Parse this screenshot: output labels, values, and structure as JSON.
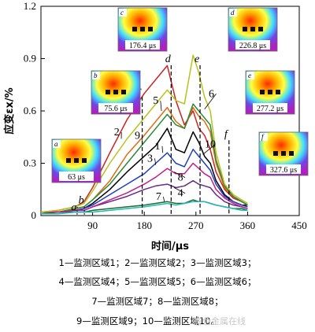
{
  "chart_data": {
    "type": "line",
    "xlabel": "时间/μs",
    "ylabel": "应变εx/%",
    "xlim": [
      0,
      450
    ],
    "ylim": [
      0,
      1.2
    ],
    "xticks": [
      90,
      180,
      270,
      360,
      450
    ],
    "yticks": [
      0,
      0.3,
      0.6,
      0.9,
      1.2
    ],
    "series": [
      {
        "name": "1",
        "color": "#000000",
        "x": [
          0,
          30,
          60,
          75,
          90,
          120,
          150,
          180,
          200,
          220,
          235,
          250,
          265,
          275,
          285,
          295,
          305,
          320,
          335,
          350,
          360
        ],
        "values": [
          0.02,
          0.02,
          0.03,
          0.04,
          0.07,
          0.15,
          0.25,
          0.34,
          0.4,
          0.5,
          0.38,
          0.36,
          0.48,
          0.42,
          0.34,
          0.3,
          0.2,
          0.12,
          0.08,
          0.06,
          0.06
        ]
      },
      {
        "name": "2",
        "color": "#cc2222",
        "x": [
          0,
          30,
          60,
          75,
          90,
          120,
          150,
          180,
          200,
          220,
          235,
          250,
          265,
          275,
          285,
          295,
          305,
          320,
          335,
          350,
          360
        ],
        "values": [
          0.02,
          0.03,
          0.05,
          0.08,
          0.16,
          0.36,
          0.55,
          0.7,
          0.78,
          0.86,
          0.66,
          0.52,
          0.6,
          0.5,
          0.46,
          0.38,
          0.25,
          0.15,
          0.1,
          0.08,
          0.06
        ]
      },
      {
        "name": "3",
        "color": "#1f3fbf",
        "x": [
          0,
          30,
          60,
          75,
          90,
          120,
          150,
          180,
          200,
          220,
          235,
          250,
          265,
          275,
          285,
          295,
          305,
          320,
          335,
          350,
          360
        ],
        "values": [
          0.02,
          0.02,
          0.03,
          0.04,
          0.06,
          0.12,
          0.18,
          0.24,
          0.3,
          0.36,
          0.3,
          0.28,
          0.38,
          0.34,
          0.3,
          0.26,
          0.18,
          0.11,
          0.08,
          0.06,
          0.05
        ]
      },
      {
        "name": "4",
        "color": "#6a2a8a",
        "x": [
          0,
          30,
          60,
          75,
          90,
          120,
          150,
          180,
          200,
          220,
          235,
          250,
          265,
          275,
          285,
          295,
          305,
          320,
          335,
          350,
          360
        ],
        "values": [
          0.02,
          0.02,
          0.03,
          0.03,
          0.05,
          0.08,
          0.11,
          0.15,
          0.17,
          0.18,
          0.16,
          0.17,
          0.2,
          0.18,
          0.17,
          0.16,
          0.12,
          0.08,
          0.06,
          0.05,
          0.04
        ]
      },
      {
        "name": "5",
        "color": "#e06a10",
        "x": [
          0,
          30,
          60,
          75,
          90,
          120,
          150,
          180,
          200,
          220,
          235,
          250,
          265,
          275,
          285,
          295,
          305,
          320,
          335,
          350,
          360
        ],
        "values": [
          0.02,
          0.02,
          0.04,
          0.05,
          0.09,
          0.2,
          0.35,
          0.46,
          0.54,
          0.62,
          0.54,
          0.5,
          0.62,
          0.57,
          0.54,
          0.48,
          0.3,
          0.16,
          0.11,
          0.08,
          0.06
        ]
      },
      {
        "name": "6",
        "color": "#2a8a3a",
        "x": [
          0,
          30,
          60,
          75,
          90,
          120,
          150,
          180,
          200,
          220,
          235,
          250,
          265,
          275,
          285,
          295,
          305,
          320,
          335,
          350,
          360
        ],
        "values": [
          0.02,
          0.02,
          0.04,
          0.05,
          0.09,
          0.18,
          0.3,
          0.42,
          0.5,
          0.58,
          0.52,
          0.5,
          0.64,
          0.6,
          0.56,
          0.52,
          0.32,
          0.17,
          0.11,
          0.08,
          0.06
        ]
      },
      {
        "name": "7",
        "color": "#1b6b2b",
        "x": [
          0,
          30,
          60,
          75,
          90,
          120,
          150,
          180,
          200,
          220,
          235,
          250,
          265,
          275,
          285,
          295,
          305,
          320,
          335,
          350,
          360
        ],
        "values": [
          0.01,
          0.02,
          0.02,
          0.02,
          0.03,
          0.04,
          0.05,
          0.06,
          0.07,
          0.08,
          0.07,
          0.07,
          0.09,
          0.08,
          0.08,
          0.07,
          0.06,
          0.05,
          0.04,
          0.04,
          0.03
        ]
      },
      {
        "name": "8",
        "color": "#c0208a",
        "x": [
          0,
          30,
          60,
          75,
          90,
          120,
          150,
          180,
          200,
          220,
          235,
          250,
          265,
          275,
          285,
          295,
          305,
          320,
          335,
          350,
          360
        ],
        "values": [
          0.02,
          0.02,
          0.03,
          0.03,
          0.05,
          0.09,
          0.13,
          0.18,
          0.22,
          0.27,
          0.24,
          0.24,
          0.3,
          0.27,
          0.24,
          0.22,
          0.15,
          0.1,
          0.07,
          0.05,
          0.04
        ]
      },
      {
        "name": "9",
        "color": "#b8c21a",
        "x": [
          0,
          30,
          60,
          75,
          90,
          120,
          150,
          180,
          200,
          220,
          235,
          250,
          265,
          275,
          285,
          295,
          305,
          320,
          335,
          350,
          360
        ],
        "values": [
          0.02,
          0.03,
          0.05,
          0.07,
          0.14,
          0.3,
          0.44,
          0.56,
          0.64,
          0.72,
          0.66,
          0.64,
          0.92,
          0.82,
          0.68,
          0.6,
          0.36,
          0.18,
          0.12,
          0.09,
          0.07
        ]
      },
      {
        "name": "10",
        "color": "#20b8b8",
        "x": [
          0,
          30,
          60,
          75,
          90,
          120,
          150,
          180,
          200,
          220,
          235,
          250,
          265,
          275,
          285,
          295,
          305,
          320,
          335,
          350,
          360
        ],
        "values": [
          0.01,
          0.01,
          0.02,
          0.02,
          0.02,
          0.03,
          0.04,
          0.05,
          0.06,
          0.07,
          0.06,
          0.07,
          0.08,
          0.08,
          0.08,
          0.07,
          0.06,
          0.05,
          0.04,
          0.03,
          0.03
        ]
      }
    ],
    "annotations": [
      {
        "label": "a",
        "x": 63
      },
      {
        "label": "b",
        "x": 75.6
      },
      {
        "label": "c",
        "x": 176.4
      },
      {
        "label": "d",
        "x": 226.8
      },
      {
        "label": "e",
        "x": 277.2
      },
      {
        "label": "f",
        "x": 327.6
      }
    ],
    "insets": [
      {
        "tag": "a",
        "time": "63 μs"
      },
      {
        "tag": "b",
        "time": "75.6 μs"
      },
      {
        "tag": "c",
        "time": "176.4 μs"
      },
      {
        "tag": "d",
        "time": "226.8 μs"
      },
      {
        "tag": "e",
        "time": "277.2 μs"
      },
      {
        "tag": "f",
        "time": "327.6 μs"
      }
    ]
  },
  "legend_lines": [
    "1—监测区域1；2—监测区域2；3—监测区域3；",
    "4—监测区域4；5—监测区域5；6—监测区域6；",
    "7—监测区域7；8—监测区域8；",
    "9—监测区域9；10—监测区域10。"
  ],
  "watermark": "有色金属在线"
}
